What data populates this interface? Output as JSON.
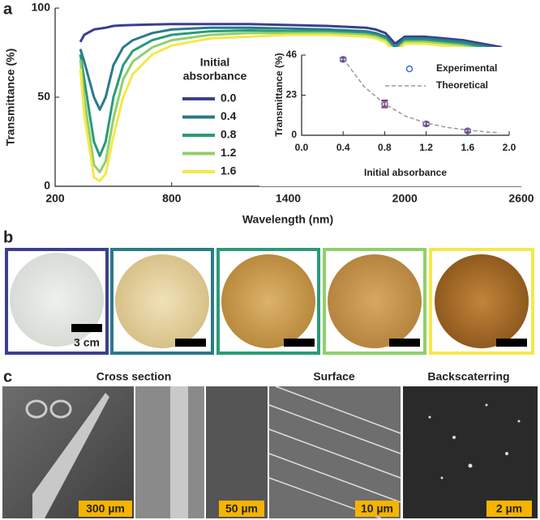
{
  "panel_labels": [
    "a",
    "b",
    "c"
  ],
  "chart_data": [
    {
      "type": "line",
      "x_label": "Wavelength (nm)",
      "y_label": "Transmittance (%)",
      "legend_title": [
        "Initial",
        "absorbance"
      ],
      "x": [
        330,
        350,
        400,
        430,
        460,
        500,
        550,
        600,
        700,
        800,
        1000,
        1200,
        1400,
        1600,
        1800,
        1850,
        1900,
        1950,
        2000,
        2100,
        2200,
        2300,
        2400,
        2500
      ],
      "series": [
        {
          "name": "0.0",
          "color": "#3b3f8f",
          "values": [
            81,
            85,
            88,
            88.5,
            89,
            90,
            90.3,
            90.5,
            90.8,
            91,
            91,
            91,
            90.5,
            90,
            89,
            88,
            86,
            80,
            84,
            84,
            83,
            82,
            80,
            78
          ]
        },
        {
          "name": "0.4",
          "color": "#2a7a8a",
          "values": [
            77,
            70,
            50,
            43,
            50,
            68,
            78,
            82,
            86,
            88,
            89,
            89,
            88.5,
            88,
            87,
            86,
            84,
            78,
            83,
            83,
            82,
            81,
            79,
            77
          ]
        },
        {
          "name": "0.8",
          "color": "#2a9a7a",
          "values": [
            74,
            60,
            25,
            17,
            25,
            50,
            68,
            76,
            82,
            85,
            87,
            87.5,
            87,
            87,
            86,
            85,
            83,
            77,
            82,
            82,
            81,
            80,
            78,
            76
          ]
        },
        {
          "name": "1.2",
          "color": "#8fd06a",
          "values": [
            71,
            50,
            12,
            8,
            14,
            38,
            60,
            70,
            78,
            82,
            85,
            86,
            86,
            86,
            85,
            84,
            82,
            76,
            81,
            81,
            80,
            79,
            77,
            75
          ]
        },
        {
          "name": "1.6",
          "color": "#f5e84a",
          "values": [
            66,
            40,
            5,
            3,
            7,
            28,
            50,
            63,
            74,
            79,
            83,
            84,
            85,
            85,
            84,
            83,
            81,
            75,
            80,
            80,
            79,
            78,
            76,
            74
          ]
        }
      ],
      "xlim": [
        200,
        2600
      ],
      "ylim": [
        0,
        100
      ],
      "xticks": [
        200,
        800,
        1400,
        2000,
        2600
      ],
      "yticks": [
        0,
        50,
        100
      ]
    },
    {
      "type": "scatter",
      "x_label": "Initial absorbance",
      "y_label": "Transmittance (%)",
      "series": [
        {
          "name": "Experimental",
          "type": "scatter",
          "color": "#3b6fd0",
          "error_color": "#c0203a",
          "x": [
            0.4,
            0.8,
            1.2,
            1.6
          ],
          "values": [
            43.5,
            18,
            6.5,
            2.5
          ],
          "errors": [
            1,
            2,
            1,
            0.8
          ]
        },
        {
          "name": "Theoretical",
          "type": "line",
          "color": "#999999",
          "x": [
            0.4,
            0.6,
            0.8,
            1.0,
            1.2,
            1.4,
            1.6,
            1.8,
            1.9
          ],
          "values": [
            44,
            28,
            18,
            11,
            7,
            4.5,
            3,
            1.8,
            1.5
          ]
        }
      ],
      "xlim": [
        0,
        2
      ],
      "ylim": [
        0,
        46
      ],
      "xticks": [
        {
          "value": 0,
          "label": "0.0"
        },
        {
          "value": 0.4,
          "label": "0.4"
        },
        {
          "value": 0.8,
          "label": "0.8"
        },
        {
          "value": 1.2,
          "label": "1.2"
        },
        {
          "value": 1.6,
          "label": "1.6"
        },
        {
          "value": 2,
          "label": "2.0"
        }
      ],
      "yticks": [
        0,
        23,
        46
      ]
    }
  ],
  "photos": {
    "scale_label": "3 cm"
  },
  "sem": {
    "titles": [
      "Cross section",
      "Surface",
      "Backscaterring"
    ],
    "scale_labels": [
      "300 µm",
      "50 µm",
      "10 µm",
      "2 µm"
    ]
  }
}
